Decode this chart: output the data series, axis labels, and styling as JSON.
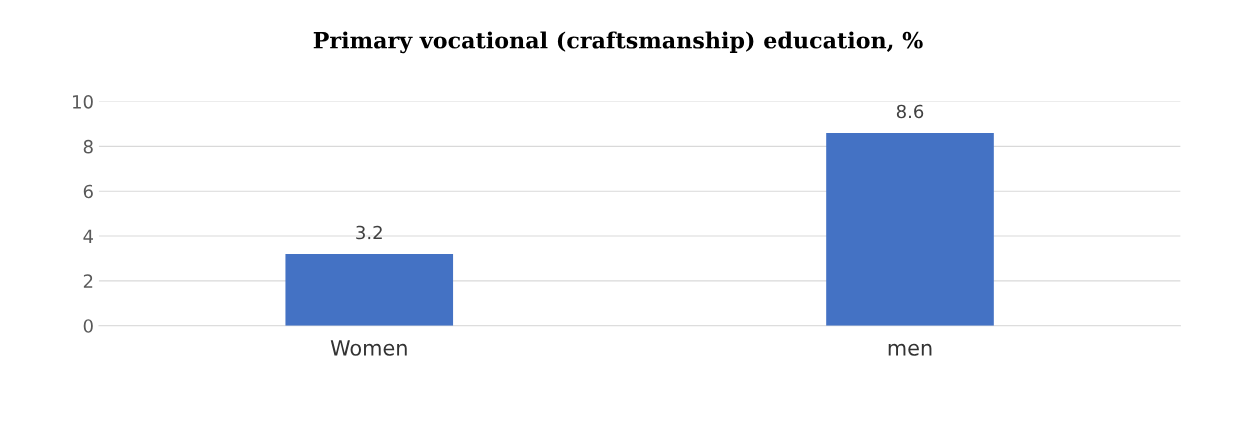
{
  "chart_data": {
    "type": "bar",
    "title": "Primary vocational (craftsmanship) education, %",
    "categories": [
      "Women",
      "men"
    ],
    "values": [
      3.2,
      8.6
    ],
    "color": "#4472c4",
    "ylim": [
      0,
      10
    ],
    "yticks": [
      0,
      2,
      4,
      6,
      8,
      10
    ],
    "grid": "y",
    "data_labels": true
  }
}
